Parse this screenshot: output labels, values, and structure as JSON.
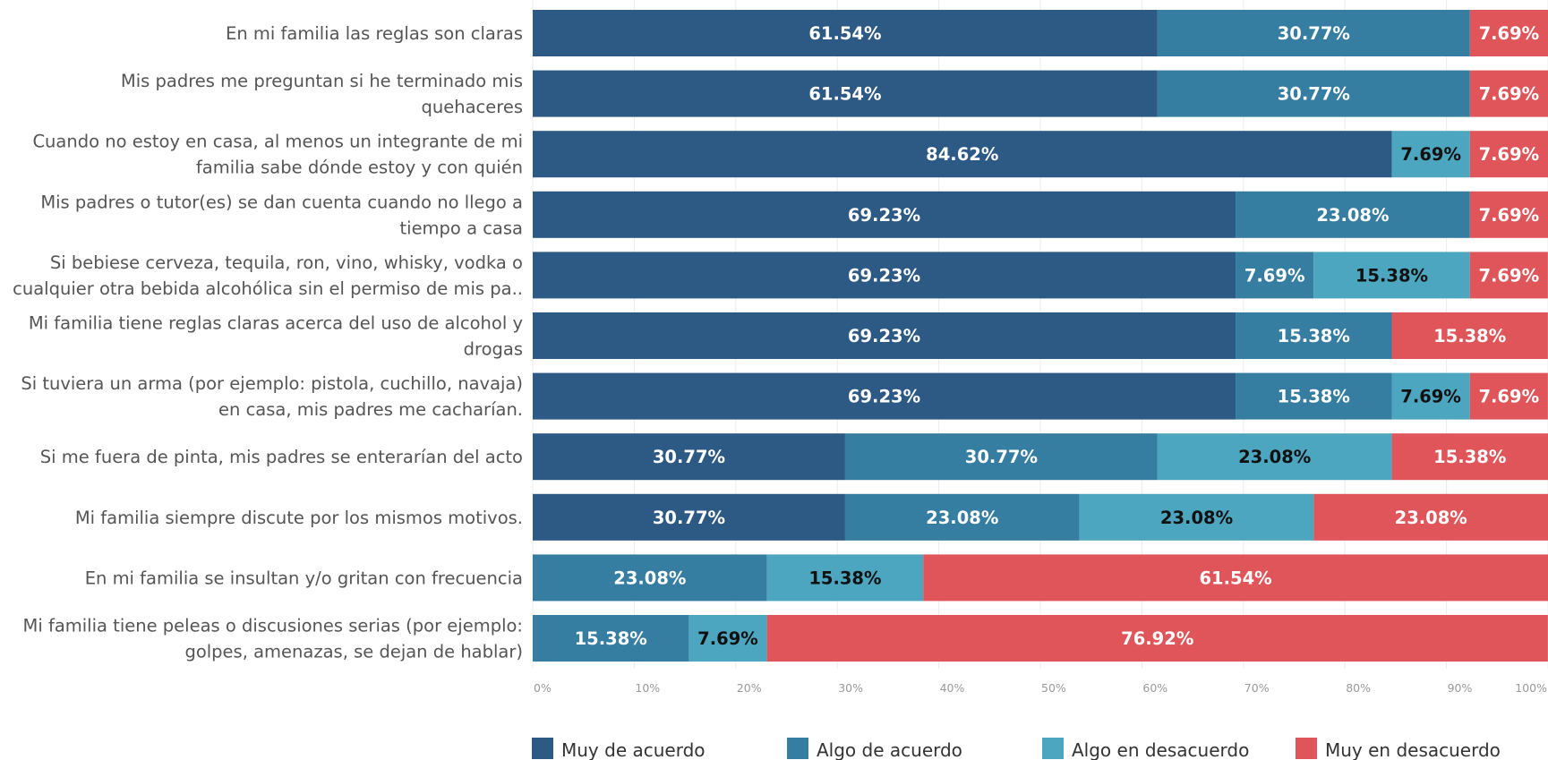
{
  "chart_data": {
    "type": "bar",
    "orientation": "horizontal",
    "stacked": true,
    "xlim": [
      0,
      100
    ],
    "grid": true,
    "legend_position": "bottom",
    "x_ticks": [
      "0%",
      "10%",
      "20%",
      "30%",
      "40%",
      "50%",
      "60%",
      "70%",
      "80%",
      "90%",
      "100%"
    ],
    "categories": [
      [
        "En mi familia las reglas son claras"
      ],
      [
        "Mis padres me preguntan si he terminado mis",
        "quehaceres"
      ],
      [
        "Cuando no estoy en casa, al menos un integrante de mi",
        "familia sabe dónde estoy y con quién"
      ],
      [
        "Mis padres o tutor(es) se dan cuenta cuando no llego a",
        "tiempo a casa"
      ],
      [
        "Si bebiese cerveza, tequila, ron, vino, whisky, vodka o",
        "cualquier otra bebida alcohólica sin el permiso de mis pa.."
      ],
      [
        "Mi familia tiene reglas claras acerca del uso de alcohol y",
        "drogas"
      ],
      [
        "Si tuviera un arma (por ejemplo: pistola, cuchillo, navaja)",
        "en casa, mis padres me cacharían."
      ],
      [
        "Si me fuera de pinta, mis padres se enterarían del acto"
      ],
      [
        "Mi familia siempre discute por los mismos motivos."
      ],
      [
        "En mi familia se insultan y/o gritan con frecuencia"
      ],
      [
        "Mi familia tiene peleas o discusiones serias (por ejemplo:",
        "golpes, amenazas, se dejan de hablar)"
      ]
    ],
    "series": [
      {
        "name": "Muy de acuerdo",
        "color": "#2d5985",
        "label_color": "#ffffff",
        "values": [
          61.54,
          61.54,
          84.62,
          69.23,
          69.23,
          69.23,
          69.23,
          30.77,
          30.77,
          0,
          0
        ]
      },
      {
        "name": "Algo de acuerdo",
        "color": "#357da1",
        "label_color": "#ffffff",
        "values": [
          30.77,
          30.77,
          0,
          23.08,
          7.69,
          15.38,
          15.38,
          30.77,
          23.08,
          23.08,
          15.38
        ]
      },
      {
        "name": "Algo en desacuerdo",
        "color": "#4da6bf",
        "label_color": "#111111",
        "values": [
          0,
          0,
          7.69,
          0,
          15.38,
          0,
          7.69,
          23.08,
          23.08,
          15.38,
          7.69
        ]
      },
      {
        "name": "Muy en desacuerdo",
        "color": "#e0555a",
        "label_color": "#ffffff",
        "values": [
          7.69,
          7.69,
          7.69,
          7.69,
          7.69,
          15.38,
          7.69,
          15.38,
          23.08,
          61.54,
          76.92
        ]
      }
    ],
    "value_suffix": "%"
  }
}
